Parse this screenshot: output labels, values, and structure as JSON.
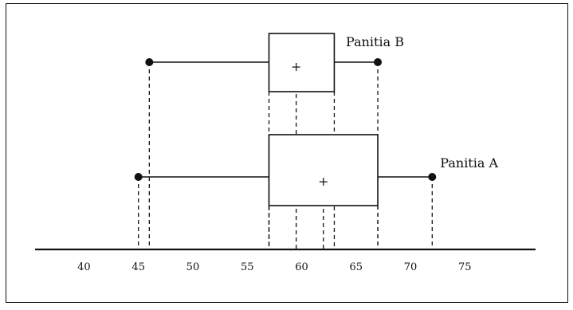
{
  "chart_data": {
    "type": "boxplot",
    "title": "",
    "xlabel": "",
    "ylabel": "",
    "x_ticks": [
      40,
      45,
      50,
      55,
      60,
      65,
      70,
      75
    ],
    "x_range": [
      35.5,
      81.5
    ],
    "grid": false,
    "series": [
      {
        "name": "Panitia B",
        "min": 46,
        "q1": 57,
        "median": 63,
        "q3": 63,
        "max": 67,
        "mean": 59.5
      },
      {
        "name": "Panitia A",
        "min": 45,
        "q1": 57,
        "median": 67,
        "q3": 67,
        "max": 72,
        "mean": 62
      }
    ],
    "mean_marker": "+",
    "colors": {
      "line": "#111111",
      "background": "#ffffff"
    }
  }
}
